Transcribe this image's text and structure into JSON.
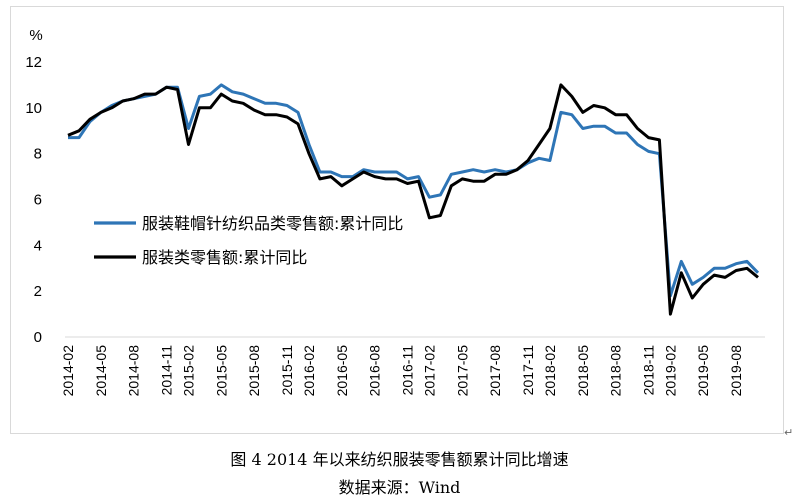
{
  "chart_data": {
    "type": "line",
    "ylabel": "%",
    "ylim": [
      0,
      12
    ],
    "yticks": [
      "0",
      "2",
      "4",
      "6",
      "8",
      "10",
      "12"
    ],
    "grid": false,
    "legend_position": "center-left",
    "x_labels": [
      "2014-02",
      "2014-05",
      "2014-08",
      "2014-11",
      "2015-02",
      "2015-05",
      "2015-08",
      "2015-11",
      "2016-02",
      "2016-05",
      "2016-08",
      "2016-11",
      "2017-02",
      "2017-05",
      "2017-08",
      "2017-11",
      "2018-02",
      "2018-05",
      "2018-08",
      "2018-11",
      "2019-02",
      "2019-05",
      "2019-08"
    ],
    "x": [
      "2014-02",
      "2014-03",
      "2014-04",
      "2014-05",
      "2014-06",
      "2014-07",
      "2014-08",
      "2014-09",
      "2014-10",
      "2014-11",
      "2014-12",
      "2015-02",
      "2015-03",
      "2015-04",
      "2015-05",
      "2015-06",
      "2015-07",
      "2015-08",
      "2015-09",
      "2015-10",
      "2015-11",
      "2015-12",
      "2016-02",
      "2016-03",
      "2016-04",
      "2016-05",
      "2016-06",
      "2016-07",
      "2016-08",
      "2016-09",
      "2016-10",
      "2016-11",
      "2016-12",
      "2017-02",
      "2017-03",
      "2017-04",
      "2017-05",
      "2017-06",
      "2017-07",
      "2017-08",
      "2017-09",
      "2017-10",
      "2017-11",
      "2017-12",
      "2018-02",
      "2018-03",
      "2018-04",
      "2018-05",
      "2018-06",
      "2018-07",
      "2018-08",
      "2018-09",
      "2018-10",
      "2018-11",
      "2018-12",
      "2019-02",
      "2019-03",
      "2019-04",
      "2019-05",
      "2019-06",
      "2019-07",
      "2019-08",
      "2019-09",
      "2019-10"
    ],
    "series": [
      {
        "name": "服装鞋帽针纺织品类零售额:累计同比",
        "color": "#2e75b6",
        "values": [
          8.7,
          8.7,
          9.4,
          9.8,
          10.1,
          10.3,
          10.4,
          10.5,
          10.6,
          10.9,
          10.9,
          9.1,
          10.5,
          10.6,
          11.0,
          10.7,
          10.6,
          10.4,
          10.2,
          10.2,
          10.1,
          9.8,
          8.4,
          7.2,
          7.2,
          7.0,
          7.0,
          7.3,
          7.2,
          7.2,
          7.2,
          6.9,
          7.0,
          6.1,
          6.2,
          7.1,
          7.2,
          7.3,
          7.2,
          7.3,
          7.2,
          7.3,
          7.6,
          7.8,
          7.7,
          9.8,
          9.7,
          9.1,
          9.2,
          9.2,
          8.9,
          8.9,
          8.4,
          8.1,
          8.0,
          1.8,
          3.3,
          2.3,
          2.6,
          3.0,
          3.0,
          3.2,
          3.3,
          2.8
        ]
      },
      {
        "name": "服装类零售额:累计同比",
        "color": "#000000",
        "values": [
          8.8,
          9.0,
          9.5,
          9.8,
          10.0,
          10.3,
          10.4,
          10.6,
          10.6,
          10.9,
          10.8,
          8.4,
          10.0,
          10.0,
          10.6,
          10.3,
          10.2,
          9.9,
          9.7,
          9.7,
          9.6,
          9.3,
          8.0,
          6.9,
          7.0,
          6.6,
          6.9,
          7.2,
          7.0,
          6.9,
          6.9,
          6.7,
          6.8,
          5.2,
          5.3,
          6.6,
          6.9,
          6.8,
          6.8,
          7.1,
          7.1,
          7.3,
          7.7,
          8.4,
          9.1,
          11.0,
          10.5,
          9.8,
          10.1,
          10.0,
          9.7,
          9.7,
          9.1,
          8.7,
          8.6,
          1.0,
          2.8,
          1.7,
          2.3,
          2.7,
          2.6,
          2.9,
          3.0,
          2.6
        ]
      }
    ]
  },
  "caption": {
    "title": "图 4 2014 年以来纺织服装零售额累计同比增速",
    "source": "数据来源：Wind"
  }
}
